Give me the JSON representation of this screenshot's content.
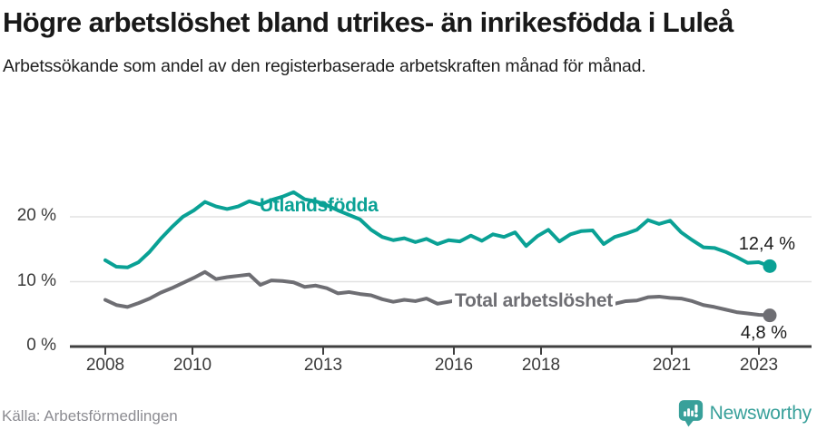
{
  "header": {
    "title": "Högre arbetslöshet bland utrikes- än inrikesfödda i Luleå",
    "subtitle": "Arbetssökande som andel av den registerbaserade arbetskraften månad för månad."
  },
  "footer": {
    "source": "Källa: Arbetsförmedlingen",
    "brand": "Newsworthy",
    "brand_color": "#38a09a"
  },
  "chart_data": {
    "type": "line",
    "title": "Högre arbetslöshet bland utrikes- än inrikesfödda i Luleå",
    "subtitle": "Arbetssökande som andel av den registerbaserade arbetskraften månad för månad.",
    "unit": "%",
    "frequency": "quarterly",
    "period_start": "2008 Q1",
    "period_end": "2023 Q1",
    "xlim": [
      2008,
      2023.5
    ],
    "ylim": [
      0,
      25
    ],
    "grid": "horizontal",
    "grid_color": "#e2e2e2",
    "axis_color": "#404040",
    "x_ticks": [
      2008,
      2010,
      2013,
      2016,
      2018,
      2021,
      2023
    ],
    "y_ticks": [
      {
        "value": 0,
        "label": "0 %"
      },
      {
        "value": 10,
        "label": "10 %"
      },
      {
        "value": 20,
        "label": "20 %"
      }
    ],
    "series": [
      {
        "name": "Utlandsfödda",
        "color": "#0aa195",
        "end_label": "12,4 %",
        "end_value": 12.4,
        "values": [
          13.3,
          12.3,
          12.2,
          13.0,
          14.6,
          16.6,
          18.4,
          20.0,
          21.0,
          22.3,
          21.6,
          21.2,
          21.6,
          22.4,
          21.9,
          22.6,
          23.1,
          23.8,
          22.7,
          22.4,
          21.8,
          21.0,
          20.3,
          19.6,
          18.0,
          16.9,
          16.4,
          16.7,
          16.1,
          16.6,
          15.8,
          16.4,
          16.2,
          17.1,
          16.3,
          17.3,
          16.9,
          17.6,
          15.5,
          17.0,
          18.0,
          16.2,
          17.3,
          17.8,
          17.9,
          15.8,
          16.9,
          17.4,
          18.0,
          19.5,
          18.9,
          19.4,
          17.6,
          16.4,
          15.3,
          15.2,
          14.6,
          13.8,
          12.9,
          13.0,
          12.4
        ]
      },
      {
        "name": "Total arbetslöshet",
        "color": "#6e6e73",
        "end_label": "4,8 %",
        "end_value": 4.8,
        "values": [
          7.2,
          6.4,
          6.1,
          6.7,
          7.4,
          8.3,
          9.0,
          9.8,
          10.6,
          11.5,
          10.4,
          10.7,
          10.9,
          11.1,
          9.5,
          10.2,
          10.1,
          9.9,
          9.2,
          9.4,
          9.0,
          8.2,
          8.4,
          8.1,
          7.9,
          7.3,
          6.9,
          7.2,
          7.0,
          7.4,
          6.6,
          6.9,
          7.2,
          7.0,
          6.7,
          7.0,
          7.1,
          7.3,
          6.8,
          7.0,
          6.9,
          6.6,
          6.4,
          6.7,
          6.7,
          6.9,
          6.6,
          7.0,
          7.1,
          7.6,
          7.7,
          7.5,
          7.4,
          7.0,
          6.4,
          6.1,
          5.7,
          5.3,
          5.1,
          4.9,
          4.8
        ]
      }
    ]
  }
}
